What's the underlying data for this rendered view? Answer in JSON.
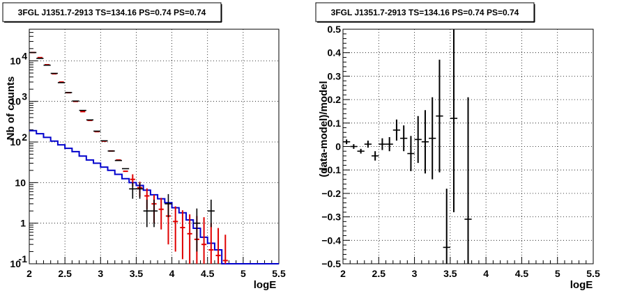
{
  "panels": [
    {
      "title": "3FGL J1351.7-2913 TS=134.16 PS=0.74 PS=0.74",
      "xlabel": "logE",
      "ylabel": "Nb of counts"
    },
    {
      "title": "3FGL J1351.7-2913 TS=134.16 PS=0.74 PS=0.74",
      "xlabel": "logE",
      "ylabel": "(data-model)/model"
    }
  ],
  "colors": {
    "data": "#000000",
    "model": "#e00000",
    "bkg": "#0000cc",
    "frame": "#000000"
  },
  "chart_data": [
    {
      "type": "line",
      "title": "3FGL J1351.7-2913 TS=134.16 PS=0.74 PS=0.74",
      "xlabel": "logE",
      "ylabel": "Nb of counts",
      "xlim": [
        2,
        5.5
      ],
      "ylim": [
        0.1,
        60000
      ],
      "yscale": "log",
      "grid": true,
      "x_ticks": [
        "2",
        "2.5",
        "3",
        "3.5",
        "4",
        "4.5",
        "5",
        "5.5"
      ],
      "y_ticks": [
        {
          "value": 0.1,
          "label": "10",
          "sup": "-1"
        },
        {
          "value": 1,
          "label": "1",
          "sup": ""
        },
        {
          "value": 10,
          "label": "10",
          "sup": ""
        },
        {
          "value": 100,
          "label": "10",
          "sup": "2"
        },
        {
          "value": 1000,
          "label": "10",
          "sup": "3"
        },
        {
          "value": 10000,
          "label": "10",
          "sup": "4"
        }
      ],
      "bin_width": 0.1,
      "series": [
        {
          "role": "data",
          "x": [
            2.05,
            2.15,
            2.25,
            2.35,
            2.45,
            2.55,
            2.65,
            2.75,
            2.85,
            2.95,
            3.05,
            3.15,
            3.25,
            3.35,
            3.45,
            3.55,
            3.65,
            3.75,
            3.95,
            4.35,
            4.55
          ],
          "y": [
            16000,
            11500,
            7800,
            4900,
            2900,
            1650,
            1020,
            600,
            350,
            185,
            107,
            60,
            35,
            22,
            7,
            7,
            2,
            2,
            3,
            1,
            2
          ],
          "yerr_low": [
            0,
            0,
            0,
            0,
            0,
            0,
            0,
            0,
            0,
            0,
            0,
            0,
            0,
            0,
            3,
            3,
            1.2,
            1.2,
            1.6,
            0.8,
            1.2
          ],
          "yerr_high": [
            0,
            0,
            0,
            0,
            0,
            0,
            0,
            0,
            0,
            0,
            0,
            0,
            0,
            0,
            3,
            3,
            1.8,
            1.8,
            2.2,
            1.3,
            1.8
          ]
        },
        {
          "role": "model",
          "x": [
            2.05,
            2.15,
            2.25,
            2.35,
            2.45,
            2.55,
            2.65,
            2.75,
            2.85,
            2.95,
            3.05,
            3.15,
            3.25,
            3.35,
            3.45,
            3.55,
            3.65,
            3.75,
            3.85,
            3.95,
            4.05,
            4.15,
            4.25,
            4.35,
            4.45,
            4.55,
            4.65,
            4.75
          ],
          "y": [
            16000,
            12000,
            8000,
            4800,
            3000,
            1640,
            1000,
            560,
            340,
            180,
            105,
            60,
            36,
            19,
            12,
            7.5,
            4.7,
            3,
            2.2,
            1.5,
            1.1,
            0.78,
            0.55,
            0.4,
            0.3,
            0.22,
            0.16,
            0.12
          ],
          "yerr_low": [
            0,
            0,
            0,
            0,
            0,
            0,
            0,
            0,
            0,
            0,
            0,
            0,
            0,
            0,
            4,
            3,
            2.5,
            2,
            1.5,
            1.2,
            0.9,
            0.65,
            0.45,
            0.33,
            0.25,
            0.18,
            0.13,
            0.1
          ],
          "yerr_high": [
            0,
            0,
            0,
            0,
            0,
            0,
            0,
            0,
            0,
            0,
            0,
            0,
            0,
            0,
            4,
            3,
            2.5,
            2,
            2,
            1.5,
            1.5,
            1.3,
            1.1,
            1.1,
            1.1,
            0.8,
            0.6,
            0.4
          ]
        },
        {
          "role": "background",
          "x": [
            2.05,
            2.15,
            2.25,
            2.35,
            2.45,
            2.55,
            2.65,
            2.75,
            2.85,
            2.95,
            3.05,
            3.15,
            3.25,
            3.35,
            3.45,
            3.55,
            3.65,
            3.75,
            3.85,
            3.95,
            4.05,
            4.15,
            4.25,
            4.35,
            4.45,
            4.55,
            4.65,
            4.75,
            4.85,
            4.95,
            5.05,
            5.15,
            5.25,
            5.35,
            5.45
          ],
          "y": [
            190,
            160,
            130,
            105,
            85,
            70,
            58,
            45,
            36,
            30,
            24,
            20,
            16,
            12.5,
            10,
            8.5,
            6.5,
            5,
            4,
            3.2,
            2.4,
            1.8,
            1.2,
            0.75,
            0.45,
            0.32,
            0.22,
            0.1,
            0.1,
            0.1,
            0.1,
            0.1,
            0.1,
            0.1,
            0.1
          ]
        }
      ]
    },
    {
      "type": "scatter",
      "title": "3FGL J1351.7-2913 TS=134.16 PS=0.74 PS=0.74",
      "xlabel": "logE",
      "ylabel": "(data-model)/model",
      "xlim": [
        2,
        5.5
      ],
      "ylim": [
        -0.5,
        0.5
      ],
      "grid": true,
      "x_ticks": [
        "2",
        "2.5",
        "3",
        "3.5",
        "4",
        "4.5",
        "5",
        "5.5"
      ],
      "y_ticks": [
        "0.5",
        "0.4",
        "0.3",
        "0.2",
        "0.1",
        "0",
        "−0.1",
        "−0.2",
        "−0.3",
        "−0.4",
        "−0.5"
      ],
      "bin_width": 0.1,
      "series": [
        {
          "role": "residual",
          "x": [
            2.05,
            2.15,
            2.25,
            2.35,
            2.45,
            2.55,
            2.65,
            2.75,
            2.85,
            2.95,
            3.05,
            3.15,
            3.25,
            3.35,
            3.45,
            3.55,
            3.75
          ],
          "y": [
            0.02,
            0.0,
            -0.02,
            0.01,
            -0.04,
            0.01,
            0.01,
            0.07,
            0.035,
            -0.03,
            0.03,
            0.02,
            0.035,
            0.13,
            -0.43,
            0.12,
            -0.31
          ],
          "yerr": [
            0.01,
            0.01,
            0.01,
            0.015,
            0.02,
            0.025,
            0.03,
            0.045,
            0.055,
            0.075,
            0.1,
            0.135,
            0.175,
            0.24,
            0.25,
            0.4,
            0.52
          ]
        }
      ]
    }
  ]
}
